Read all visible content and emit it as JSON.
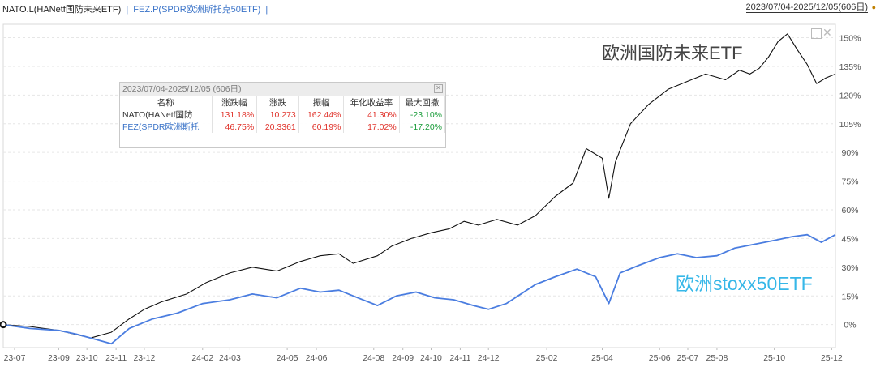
{
  "legend": {
    "nato_label": "NATO.L(HANetf国防未来ETF)",
    "separator": "|",
    "fez_label": "FEZ.P(SPDR欧洲斯托克50ETF)",
    "trailing_separator": "|"
  },
  "range_label": "2023/07/04-2025/12/05(606日)",
  "annotations": {
    "nato": "欧洲国防未来ETF",
    "fez": "欧洲stoxx50ETF"
  },
  "infobox": {
    "header": "2023/07/04-2025/12/05 (606日)",
    "columns": [
      "名称",
      "涨跌幅",
      "涨跌",
      "振幅",
      "年化收益率",
      "最大回撤"
    ],
    "rows": [
      {
        "name": "NATO(HANetf国防",
        "chg_pct": "131.18%",
        "chg": "10.273",
        "amplitude": "162.44%",
        "annualized": "41.30%",
        "max_drawdown": "-23.10%"
      },
      {
        "name": "FEZ(SPDR欧洲斯托",
        "chg_pct": "46.75%",
        "chg": "20.3361",
        "amplitude": "60.19%",
        "annualized": "17.02%",
        "max_drawdown": "-17.20%"
      }
    ]
  },
  "colors": {
    "nato_line": "#111111",
    "fez_line": "#4a7de0",
    "fez_annotation": "#36b7e8",
    "positive": "#e0332b",
    "negative": "#1a9c3a",
    "grid": "#e6e6e6"
  },
  "chart_data": {
    "type": "line",
    "x_tick_labels": [
      "23-07",
      "23-09",
      "23-10",
      "23-11",
      "23-12",
      "24-02",
      "24-03",
      "24-05",
      "24-06",
      "24-08",
      "24-09",
      "24-10",
      "24-11",
      "24-12",
      "25-02",
      "25-04",
      "25-06",
      "25-07",
      "25-08",
      "25-10",
      "25-12"
    ],
    "y_tick_labels": [
      "0%",
      "15%",
      "30%",
      "45%",
      "60%",
      "75%",
      "90%",
      "105%",
      "120%",
      "135%",
      "150%"
    ],
    "y_unit": "%",
    "ylim": [
      -12,
      157
    ],
    "grid": true,
    "series": [
      {
        "name": "NATO(HANetf国防",
        "x": [
          "2023-07-04",
          "2023-08-01",
          "2023-09-01",
          "2023-10-05",
          "2023-10-27",
          "2023-11-15",
          "2023-12-01",
          "2023-12-20",
          "2024-01-15",
          "2024-02-05",
          "2024-03-01",
          "2024-03-25",
          "2024-04-20",
          "2024-05-15",
          "2024-06-05",
          "2024-06-25",
          "2024-07-10",
          "2024-08-05",
          "2024-08-20",
          "2024-09-10",
          "2024-10-01",
          "2024-10-20",
          "2024-11-05",
          "2024-11-20",
          "2024-12-10",
          "2025-01-01",
          "2025-01-20",
          "2025-02-10",
          "2025-03-01",
          "2025-03-15",
          "2025-04-01",
          "2025-04-08",
          "2025-04-15",
          "2025-05-01",
          "2025-05-20",
          "2025-06-10",
          "2025-06-30",
          "2025-07-20",
          "2025-08-10",
          "2025-08-25",
          "2025-09-05",
          "2025-09-15",
          "2025-09-25",
          "2025-10-05",
          "2025-10-15",
          "2025-10-25",
          "2025-11-05",
          "2025-11-15",
          "2025-11-25",
          "2025-12-05"
        ],
        "values": [
          0,
          -1,
          -3,
          -7,
          -4,
          3,
          8,
          12,
          16,
          22,
          27,
          30,
          28,
          33,
          36,
          37,
          32,
          36,
          41,
          45,
          48,
          50,
          54,
          52,
          55,
          52,
          57,
          67,
          74,
          92,
          87,
          66,
          85,
          105,
          115,
          123,
          127,
          131,
          128,
          133,
          131,
          134,
          140,
          148,
          152,
          144,
          136,
          126,
          129,
          131
        ]
      },
      {
        "name": "FEZ(SPDR欧洲斯托",
        "x": [
          "2023-07-04",
          "2023-08-01",
          "2023-09-01",
          "2023-09-20",
          "2023-10-05",
          "2023-10-27",
          "2023-11-15",
          "2023-12-10",
          "2024-01-05",
          "2024-02-01",
          "2024-03-01",
          "2024-03-25",
          "2024-04-20",
          "2024-05-15",
          "2024-06-05",
          "2024-06-25",
          "2024-07-15",
          "2024-08-05",
          "2024-08-25",
          "2024-09-15",
          "2024-10-05",
          "2024-10-25",
          "2024-11-15",
          "2024-12-01",
          "2024-12-20",
          "2025-01-20",
          "2025-02-10",
          "2025-03-05",
          "2025-03-25",
          "2025-04-08",
          "2025-04-20",
          "2025-05-10",
          "2025-06-01",
          "2025-06-20",
          "2025-07-10",
          "2025-08-01",
          "2025-08-20",
          "2025-09-10",
          "2025-10-01",
          "2025-10-20",
          "2025-11-05",
          "2025-11-20",
          "2025-12-05"
        ],
        "values": [
          0,
          -2,
          -3,
          -5,
          -7,
          -10,
          -2,
          3,
          6,
          11,
          13,
          16,
          14,
          19,
          17,
          18,
          14,
          10,
          15,
          17,
          14,
          13,
          10,
          8,
          11,
          21,
          25,
          29,
          25,
          11,
          27,
          31,
          35,
          37,
          35,
          36,
          40,
          42,
          44,
          46,
          47,
          43,
          47
        ]
      }
    ]
  }
}
